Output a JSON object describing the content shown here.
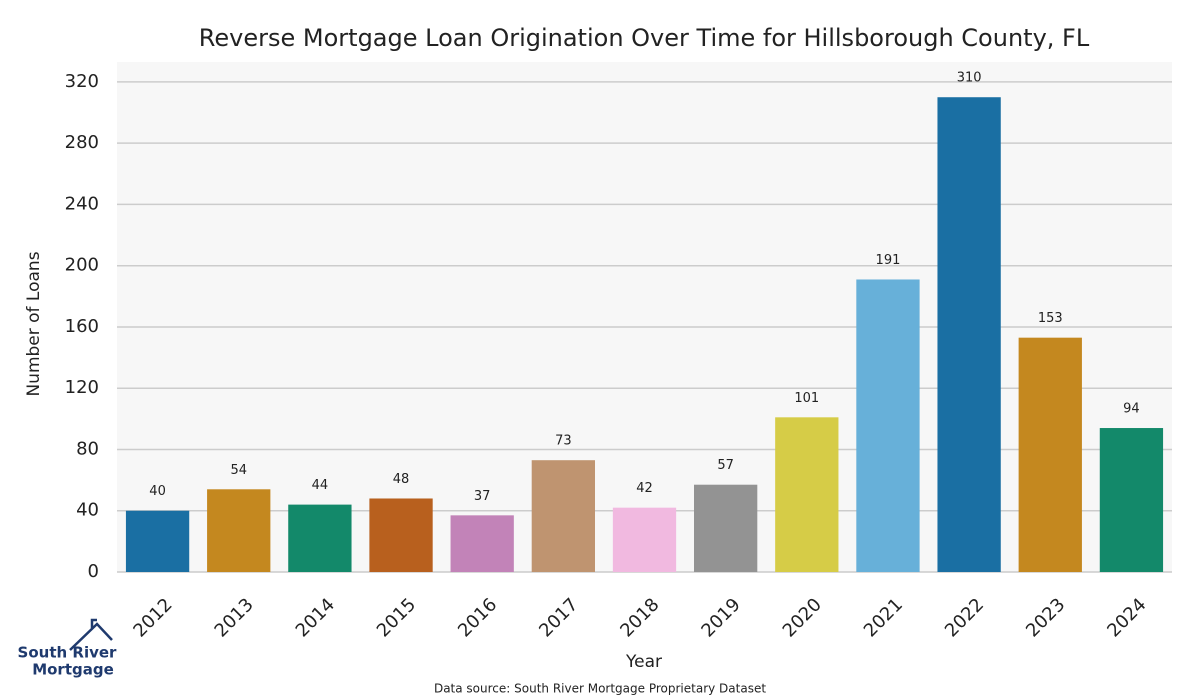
{
  "chart_data": {
    "type": "bar",
    "title": "Reverse Mortgage Loan Origination Over Time for Hillsborough County, FL",
    "x_label": "Year",
    "y_label": "Number of Loans",
    "categories": [
      "2012",
      "2013",
      "2014",
      "2015",
      "2016",
      "2017",
      "2018",
      "2019",
      "2020",
      "2021",
      "2022",
      "2023",
      "2024"
    ],
    "values": [
      40,
      54,
      44,
      48,
      37,
      73,
      42,
      57,
      101,
      191,
      310,
      153,
      94
    ],
    "colors": [
      "#1a6fa3",
      "#c4881f",
      "#13896a",
      "#b8601e",
      "#c283b8",
      "#bf9470",
      "#f1b9e0",
      "#939393",
      "#d6cc47",
      "#67b0d9",
      "#1a6fa3",
      "#c4881f",
      "#13896a"
    ],
    "ylim": [
      0,
      333
    ],
    "yticks": [
      0,
      40,
      80,
      120,
      160,
      200,
      240,
      280,
      320
    ],
    "grid": true
  },
  "logo": {
    "line1": "South River",
    "line2": "Mortgage"
  },
  "source": "Data source: South River Mortgage Proprietary Dataset"
}
